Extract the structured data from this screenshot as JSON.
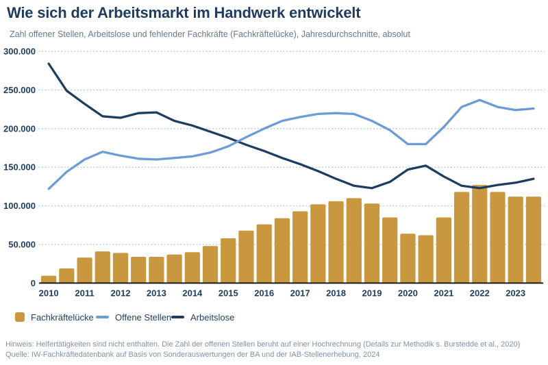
{
  "header": {
    "title": "Wie sich der Arbeitsmarkt im Handwerk entwickelt",
    "subtitle": "Zahl offener Stellen, Arbeitslose und fehlender Fachkräfte (Fachkräftelücke), Jahresdurchschnitte, absolut"
  },
  "chart_data": {
    "type": "bar+line combo",
    "categories": [
      "2010-H1",
      "2010-H2",
      "2011-H1",
      "2011-H2",
      "2012-H1",
      "2012-H2",
      "2013-H1",
      "2013-H2",
      "2014-H1",
      "2014-H2",
      "2015-H1",
      "2015-H2",
      "2016-H1",
      "2016-H2",
      "2017-H1",
      "2017-H2",
      "2018-H1",
      "2018-H2",
      "2019-H1",
      "2019-H2",
      "2020-H1",
      "2020-H2",
      "2021-H1",
      "2021-H2",
      "2022-H1",
      "2022-H2",
      "2023-H1",
      "2023-H2"
    ],
    "year_tick_labels": [
      "2010",
      "2011",
      "2012",
      "2013",
      "2014",
      "2015",
      "2016",
      "2017",
      "2018",
      "2019",
      "2020",
      "2021",
      "2022",
      "2023"
    ],
    "series": [
      {
        "name": "Fachkräftelücke",
        "type": "bar",
        "color": "#c9973e",
        "values": [
          9600,
          19000,
          33000,
          41000,
          39000,
          34000,
          34000,
          37000,
          40000,
          48000,
          58000,
          68000,
          76000,
          84000,
          93000,
          102000,
          106000,
          110000,
          103000,
          85000,
          64000,
          62000,
          85000,
          118000,
          127000,
          118000,
          112000,
          112000
        ]
      },
      {
        "name": "Offene Stellen",
        "type": "line",
        "color": "#6b9cd6",
        "values": [
          122000,
          144000,
          160000,
          170000,
          165000,
          161000,
          160000,
          162000,
          164000,
          169000,
          177000,
          189000,
          200000,
          210000,
          215000,
          219000,
          220000,
          219000,
          210000,
          198000,
          180000,
          180000,
          202000,
          228000,
          237000,
          228000,
          224000,
          226000
        ]
      },
      {
        "name": "Arbeitslose",
        "type": "line",
        "color": "#1e3d60",
        "values": [
          284000,
          249000,
          232000,
          216000,
          214000,
          220000,
          221000,
          210000,
          204000,
          196000,
          188000,
          179000,
          171000,
          162000,
          154000,
          145000,
          135000,
          126000,
          123000,
          131000,
          147000,
          152000,
          138000,
          126000,
          123000,
          127000,
          130000,
          135000
        ]
      }
    ],
    "ylim": [
      0,
      300000
    ],
    "ytick_step": 50000,
    "ytick_labels": [
      "0",
      "50.000",
      "100.000",
      "150.000",
      "200.000",
      "250.000",
      "300.000"
    ],
    "grid": "horizontal dotted",
    "legend_position": "bottom-left"
  },
  "theme": {
    "title_color": "#1d3c5e",
    "subtitle_color": "#64798e",
    "axis_label_color": "#1d3c5e",
    "gridline_color": "#b3c5da",
    "axis_line_color": "#1a1a1a",
    "footer_color": "#7e93a8"
  },
  "footer": {
    "note": "Hinweis: Helfertätigkeiten sind nicht enthalten. Die Zahl der offenen Stellen beruht auf einer Hochrechnung (Details zur Methodik s. Burstedde et al., 2020)",
    "source": "Quelle: IW-Fachkräftedatenbank auf Basis von Sonderauswertungen der BA und der IAB-Stellenerhebung, 2024"
  }
}
